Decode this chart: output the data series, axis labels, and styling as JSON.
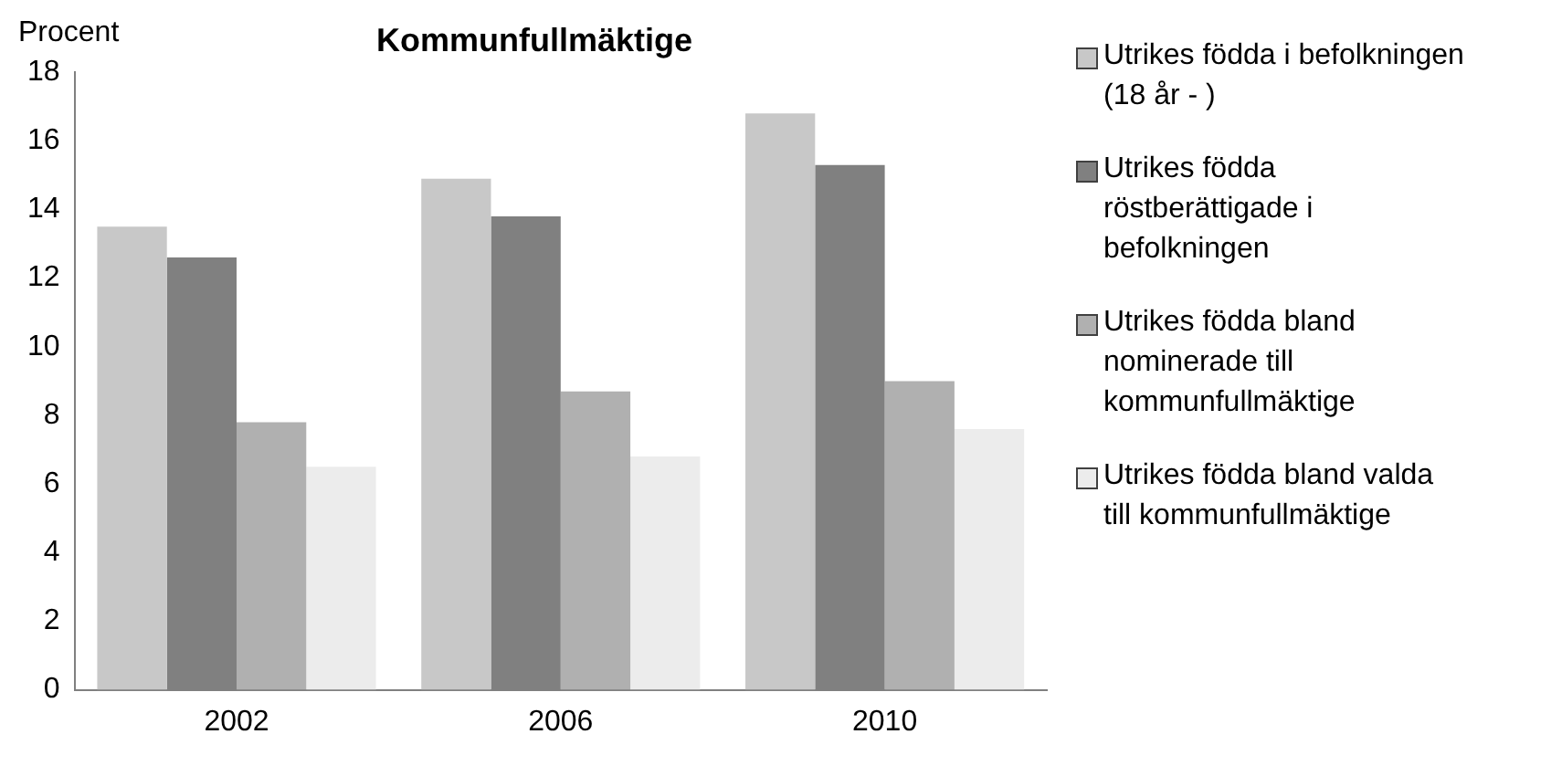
{
  "chart_data": {
    "type": "bar",
    "title": "Kommunfullmäktige",
    "ylabel": "Procent",
    "categories": [
      "2002",
      "2006",
      "2010"
    ],
    "series": [
      {
        "name": "Utrikes födda i befolkningen (18 år - )",
        "color": "#c8c8c8",
        "values": [
          13.5,
          14.9,
          16.8
        ]
      },
      {
        "name": "Utrikes födda röstberättigade i befolkningen",
        "color": "#808080",
        "values": [
          12.6,
          13.8,
          15.3
        ]
      },
      {
        "name": "Utrikes födda bland nominerade till kommunfullmäktige",
        "color": "#b0b0b0",
        "values": [
          7.8,
          8.7,
          9.0
        ]
      },
      {
        "name": "Utrikes födda bland valda till kommunfullmäktige",
        "color": "#ececec",
        "values": [
          6.5,
          6.8,
          7.6
        ]
      }
    ],
    "ylim": [
      0,
      18
    ],
    "yticks": [
      0,
      2,
      4,
      6,
      8,
      10,
      12,
      14,
      16,
      18
    ],
    "grid": false,
    "legend": "right"
  }
}
